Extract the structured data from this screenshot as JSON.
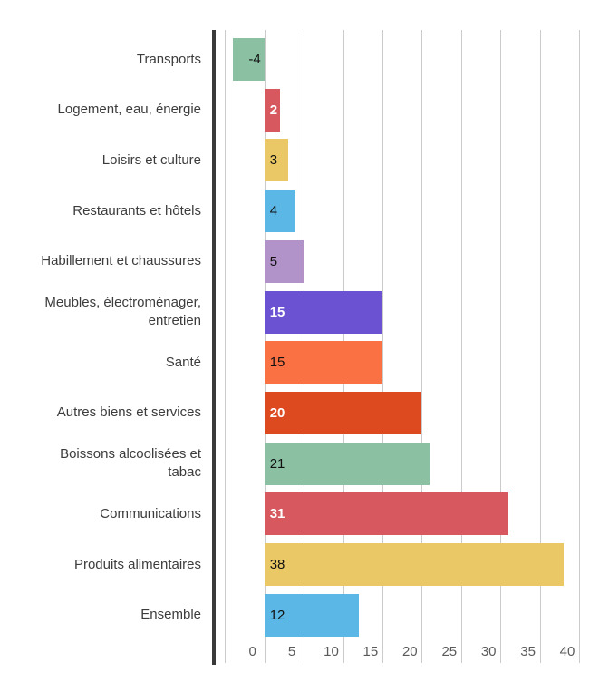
{
  "chart_data": {
    "type": "bar",
    "orientation": "horizontal",
    "title": "",
    "xlabel": "",
    "ylabel": "",
    "legend": "none",
    "grid": true,
    "xlim": [
      -6.6,
      42.6
    ],
    "x_ticks": [
      0,
      5,
      10,
      15,
      20,
      25,
      30,
      35,
      40
    ],
    "x_tick_labels": [
      "0",
      "5",
      "10",
      "15",
      "20",
      "25",
      "30",
      "35",
      "40"
    ],
    "x_gridlines": [
      -5,
      0,
      5,
      10,
      15,
      20,
      25,
      30,
      35,
      40
    ],
    "categories": [
      "Transports",
      "Logement, eau, énergie",
      "Loisirs et culture",
      "Restaurants et hôtels",
      "Habillement et chaussures",
      "Meubles, électroménager, entretien",
      "Santé",
      "Autres biens et services",
      "Boissons alcoolisées et tabac",
      "Communications",
      "Produits alimentaires",
      "Ensemble"
    ],
    "values": [
      -4,
      2,
      3,
      4,
      5,
      15,
      15,
      20,
      21,
      31,
      38,
      12
    ],
    "bars": [
      {
        "category": "Transports",
        "value": -4,
        "label": "-4",
        "color": "#8BC0A2",
        "label_style": "dark"
      },
      {
        "category": "Logement, eau, énergie",
        "value": 2,
        "label": "2",
        "color": "#D7585E",
        "label_style": "white"
      },
      {
        "category": "Loisirs et culture",
        "value": 3,
        "label": "3",
        "color": "#EAC865",
        "label_style": "dark"
      },
      {
        "category": "Restaurants et hôtels",
        "value": 4,
        "label": "4",
        "color": "#5BB7E6",
        "label_style": "dark"
      },
      {
        "category": "Habillement et chaussures",
        "value": 5,
        "label": "5",
        "color": "#B192C9",
        "label_style": "dark"
      },
      {
        "category": "Meubles, électroménager, entretien",
        "value": 15,
        "label": "15",
        "color": "#6A52D3",
        "label_style": "white"
      },
      {
        "category": "Santé",
        "value": 15,
        "label": "15",
        "color": "#FA7144",
        "label_style": "dark"
      },
      {
        "category": "Autres biens et services",
        "value": 20,
        "label": "20",
        "color": "#DD4A1F",
        "label_style": "white"
      },
      {
        "category": "Boissons alcoolisées et tabac",
        "value": 21,
        "label": "21",
        "color": "#8BC0A2",
        "label_style": "dark"
      },
      {
        "category": "Communications",
        "value": 31,
        "label": "31",
        "color": "#D7585E",
        "label_style": "white"
      },
      {
        "category": "Produits alimentaires",
        "value": 38,
        "label": "38",
        "color": "#EAC865",
        "label_style": "dark"
      },
      {
        "category": "Ensemble",
        "value": 12,
        "label": "12",
        "color": "#5BB7E6",
        "label_style": "dark"
      }
    ]
  },
  "colors": {
    "background": "#FFFFFF",
    "grid_line": "#CBCBCB",
    "axis_line": "#3A3A3A",
    "category_text": "#3C3C3C",
    "tick_text": "#5A5A5A",
    "value_dark": "#111111",
    "value_white": "#FFFFFF"
  }
}
